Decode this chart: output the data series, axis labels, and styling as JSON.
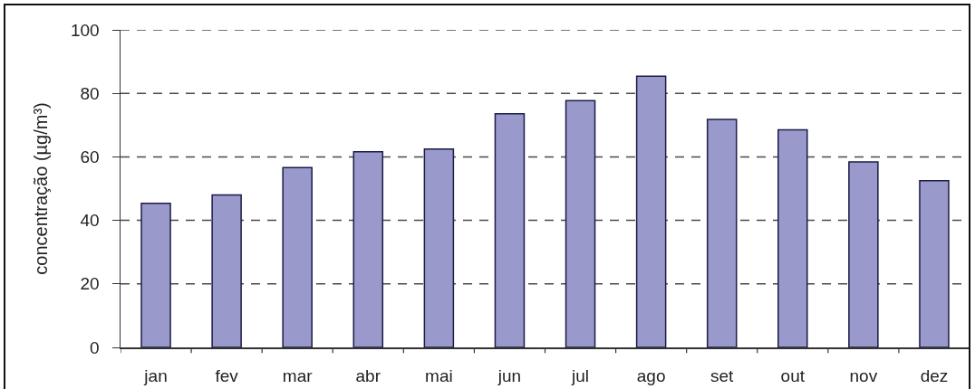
{
  "chart_data": {
    "type": "bar",
    "ylabel": "concentração (µg/m³)",
    "categories": [
      "jan",
      "fev",
      "mar",
      "abr",
      "mai",
      "jun",
      "jul",
      "ago",
      "set",
      "out",
      "nov",
      "dez"
    ],
    "values": [
      45.4,
      48,
      56.6,
      61.6,
      62.5,
      73.6,
      77.7,
      85.4,
      71.8,
      68.5,
      58.4,
      52.5
    ],
    "color": "#9999cc",
    "ylim": [
      0,
      100
    ],
    "yticks": [
      0,
      20,
      40,
      60,
      80,
      100
    ],
    "grid": "y"
  }
}
